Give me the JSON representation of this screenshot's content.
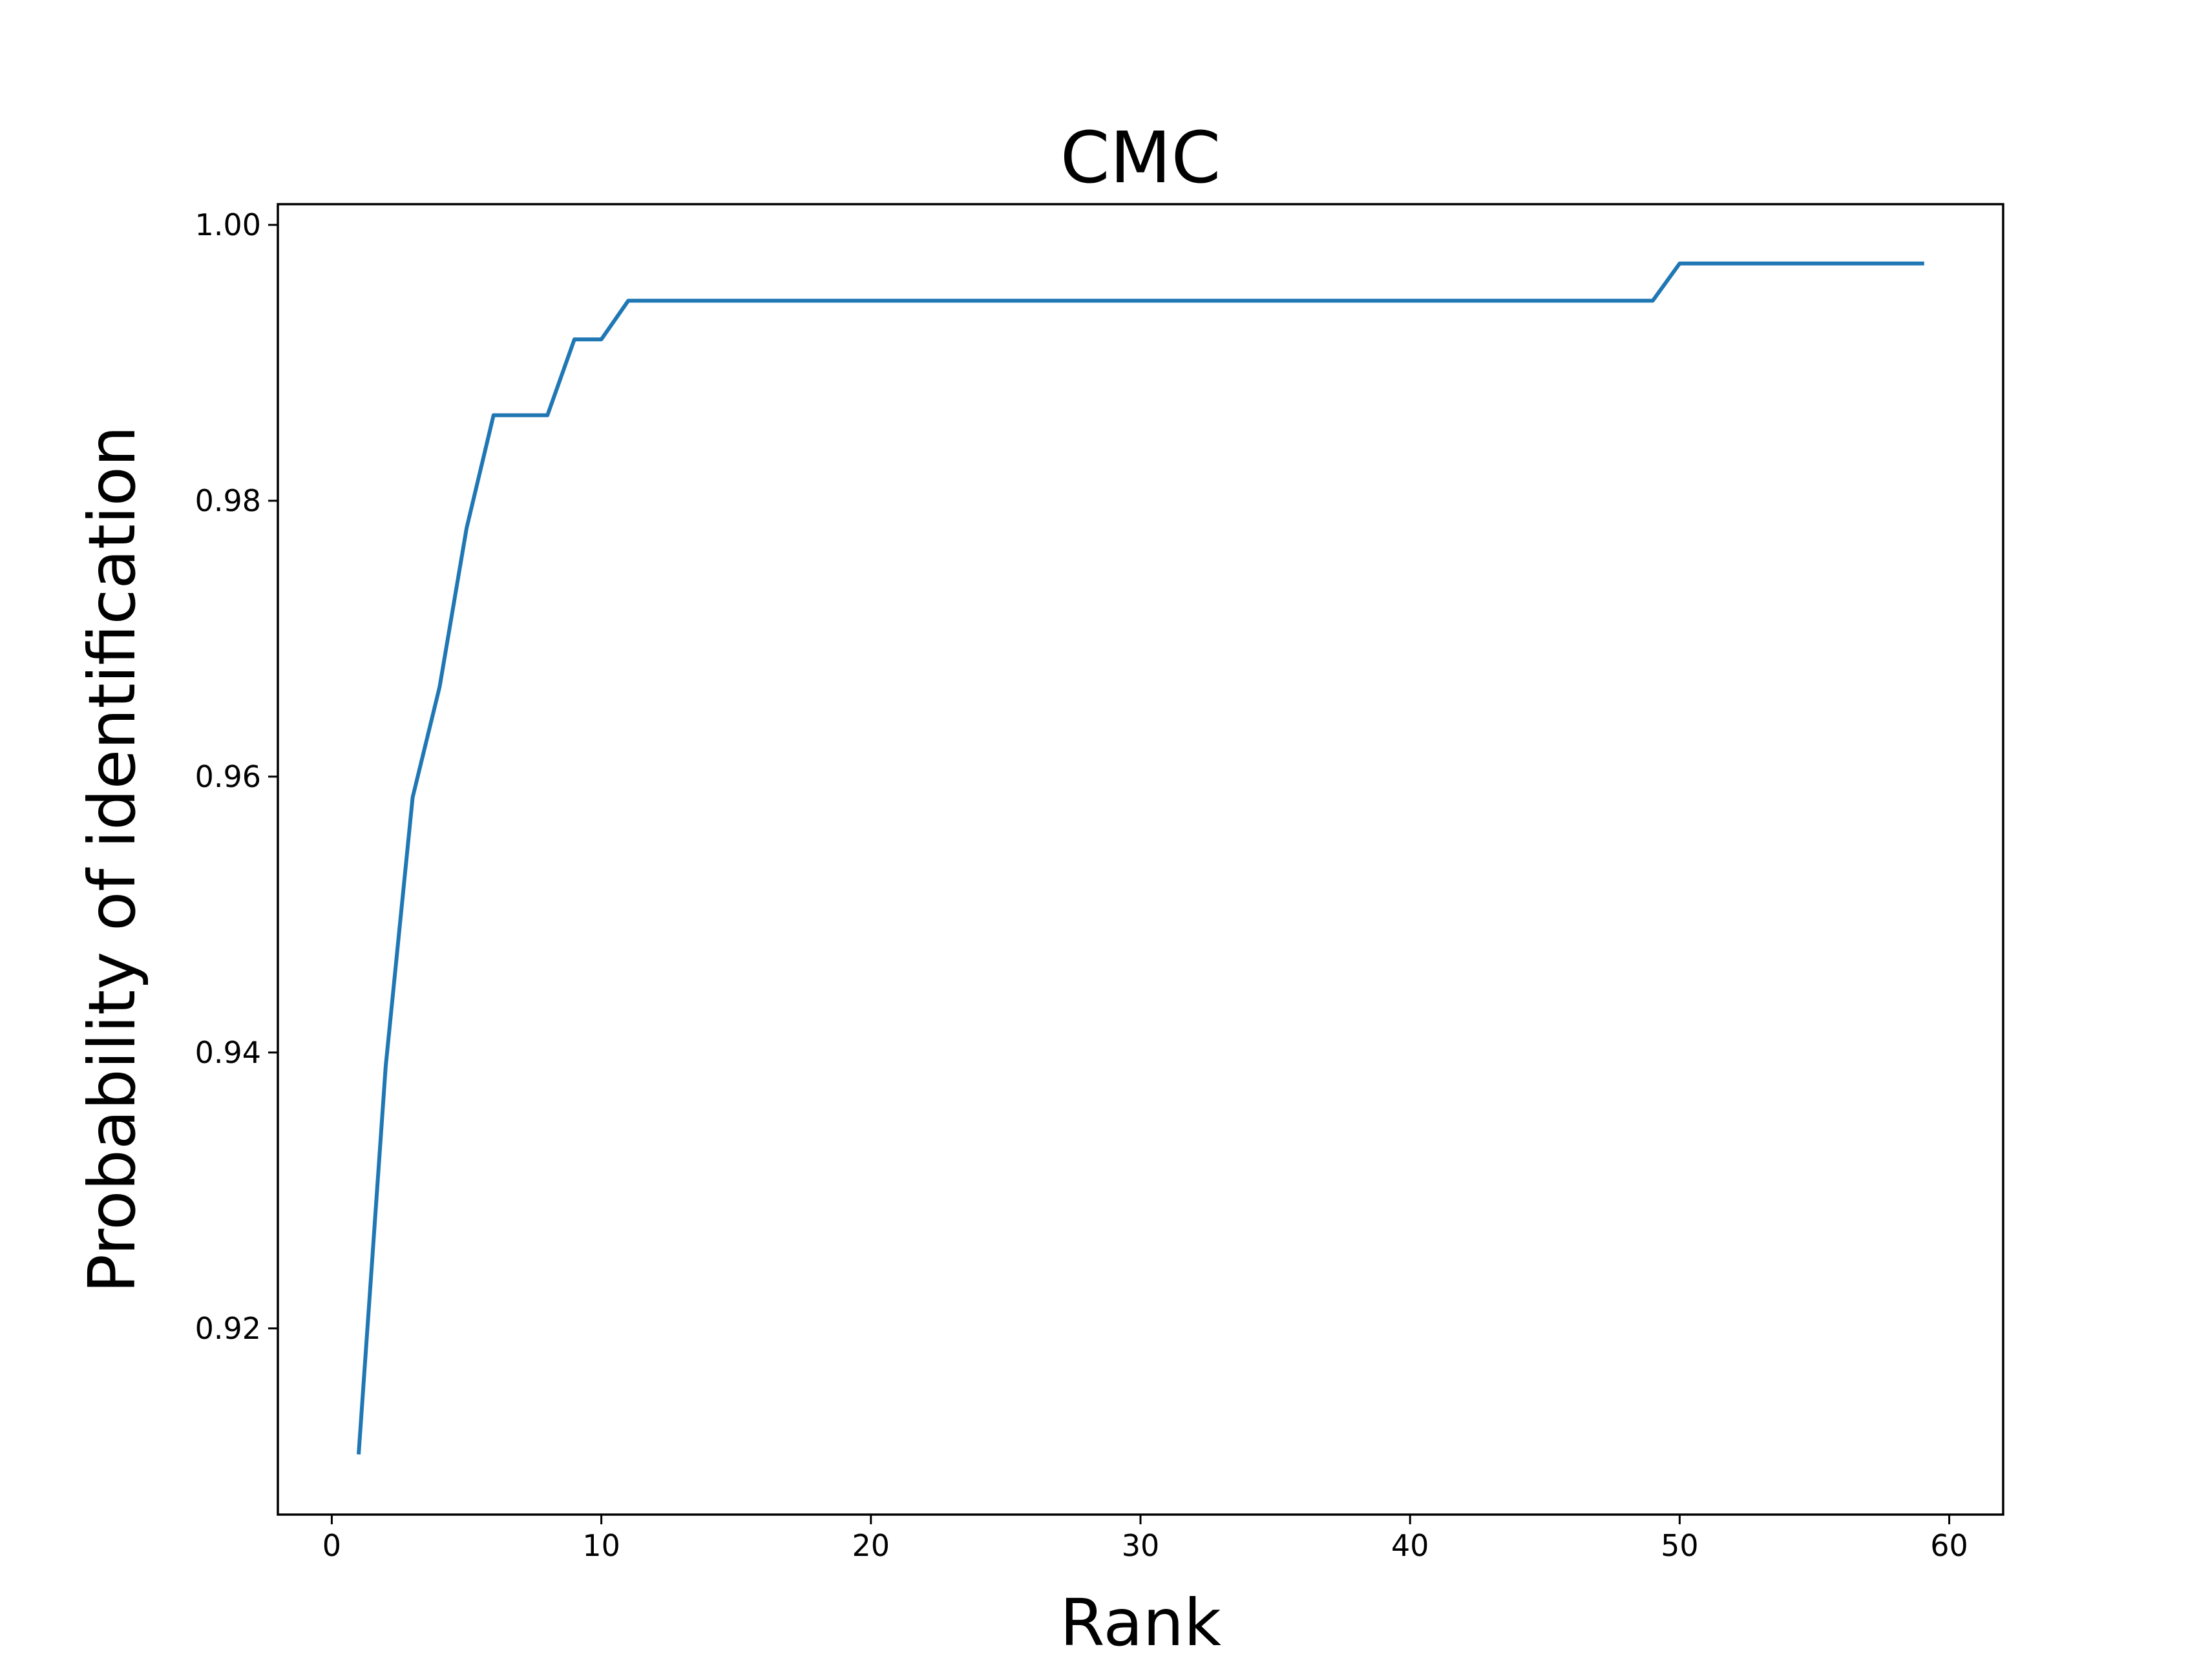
{
  "chart_data": {
    "type": "line",
    "title": "CMC",
    "xlabel": "Rank",
    "ylabel": "Probability of identification",
    "xlim": [
      -2,
      62
    ],
    "ylim": [
      0.9065,
      1.0015
    ],
    "xticks": [
      0,
      10,
      20,
      30,
      40,
      50,
      60
    ],
    "xtick_labels": [
      "0",
      "10",
      "20",
      "30",
      "40",
      "50",
      "60"
    ],
    "yticks": [
      0.92,
      0.94,
      0.96,
      0.98,
      1.0
    ],
    "ytick_labels": [
      "0.92",
      "0.94",
      "0.96",
      "0.98",
      "1.00"
    ],
    "grid": false,
    "legend": "none",
    "line_color": "#1f77b4",
    "series": [
      {
        "x": [
          1,
          2,
          3,
          4,
          5,
          6,
          7,
          8,
          9,
          10,
          11,
          12,
          13,
          14,
          15,
          16,
          17,
          18,
          19,
          20,
          21,
          22,
          23,
          24,
          25,
          26,
          27,
          28,
          29,
          30,
          31,
          32,
          33,
          34,
          35,
          36,
          37,
          38,
          39,
          40,
          41,
          42,
          43,
          44,
          45,
          46,
          47,
          48,
          49,
          50,
          51,
          52,
          53,
          54,
          55,
          56,
          57,
          58,
          59
        ],
        "values": [
          0.911,
          0.939,
          0.9585,
          0.9665,
          0.978,
          0.9862,
          0.9862,
          0.9862,
          0.9917,
          0.9917,
          0.9945,
          0.9945,
          0.9945,
          0.9945,
          0.9945,
          0.9945,
          0.9945,
          0.9945,
          0.9945,
          0.9945,
          0.9945,
          0.9945,
          0.9945,
          0.9945,
          0.9945,
          0.9945,
          0.9945,
          0.9945,
          0.9945,
          0.9945,
          0.9945,
          0.9945,
          0.9945,
          0.9945,
          0.9945,
          0.9945,
          0.9945,
          0.9945,
          0.9945,
          0.9945,
          0.9945,
          0.9945,
          0.9945,
          0.9945,
          0.9945,
          0.9945,
          0.9945,
          0.9945,
          0.9945,
          0.9972,
          0.9972,
          0.9972,
          0.9972,
          0.9972,
          0.9972,
          0.9972,
          0.9972,
          0.9972,
          0.9972
        ]
      }
    ]
  }
}
